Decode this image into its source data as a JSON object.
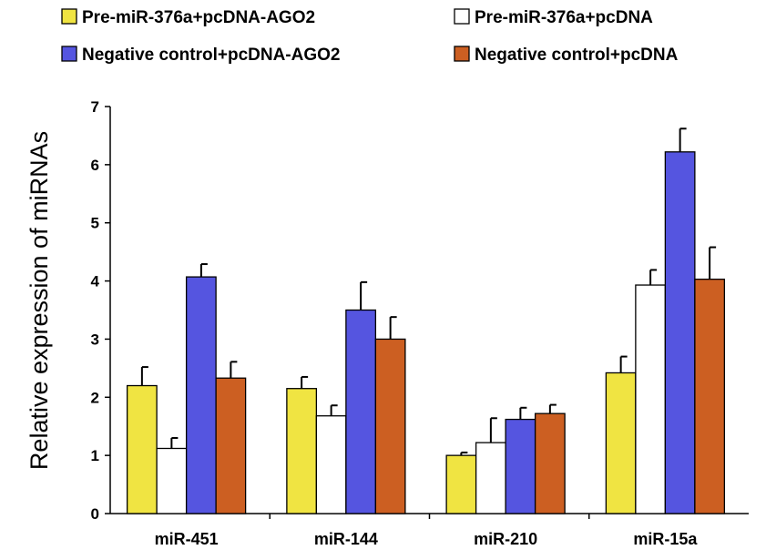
{
  "chart_data": {
    "type": "bar",
    "categories": [
      "miR-451",
      "miR-144",
      "miR-210",
      "miR-15a"
    ],
    "series": [
      {
        "name": "Pre-miR-376a+pcDNA-AGO2",
        "color": "#f0e442",
        "values": [
          2.2,
          2.15,
          1.0,
          2.42
        ],
        "errors": [
          0.32,
          0.2,
          0.05,
          0.28
        ]
      },
      {
        "name": "Pre-miR-376a+pcDNA",
        "color": "#ffffff",
        "values": [
          1.12,
          1.68,
          1.22,
          3.93
        ],
        "errors": [
          0.18,
          0.18,
          0.42,
          0.26
        ]
      },
      {
        "name": "Negative control+pcDNA-AGO2",
        "color": "#5555e0",
        "values": [
          4.07,
          3.5,
          1.62,
          6.22
        ],
        "errors": [
          0.22,
          0.48,
          0.2,
          0.4
        ]
      },
      {
        "name": "Negative control+pcDNA",
        "color": "#cc5f22",
        "values": [
          2.33,
          3.0,
          1.72,
          4.03
        ],
        "errors": [
          0.28,
          0.38,
          0.15,
          0.55
        ]
      }
    ],
    "title": "",
    "xlabel": "",
    "ylabel": "Relative expression of miRNAs",
    "ylim": [
      0,
      7
    ],
    "yticks": [
      "0",
      "1",
      "2",
      "3",
      "4",
      "5",
      "6",
      "7"
    ],
    "legend": "top",
    "grid": false
  }
}
